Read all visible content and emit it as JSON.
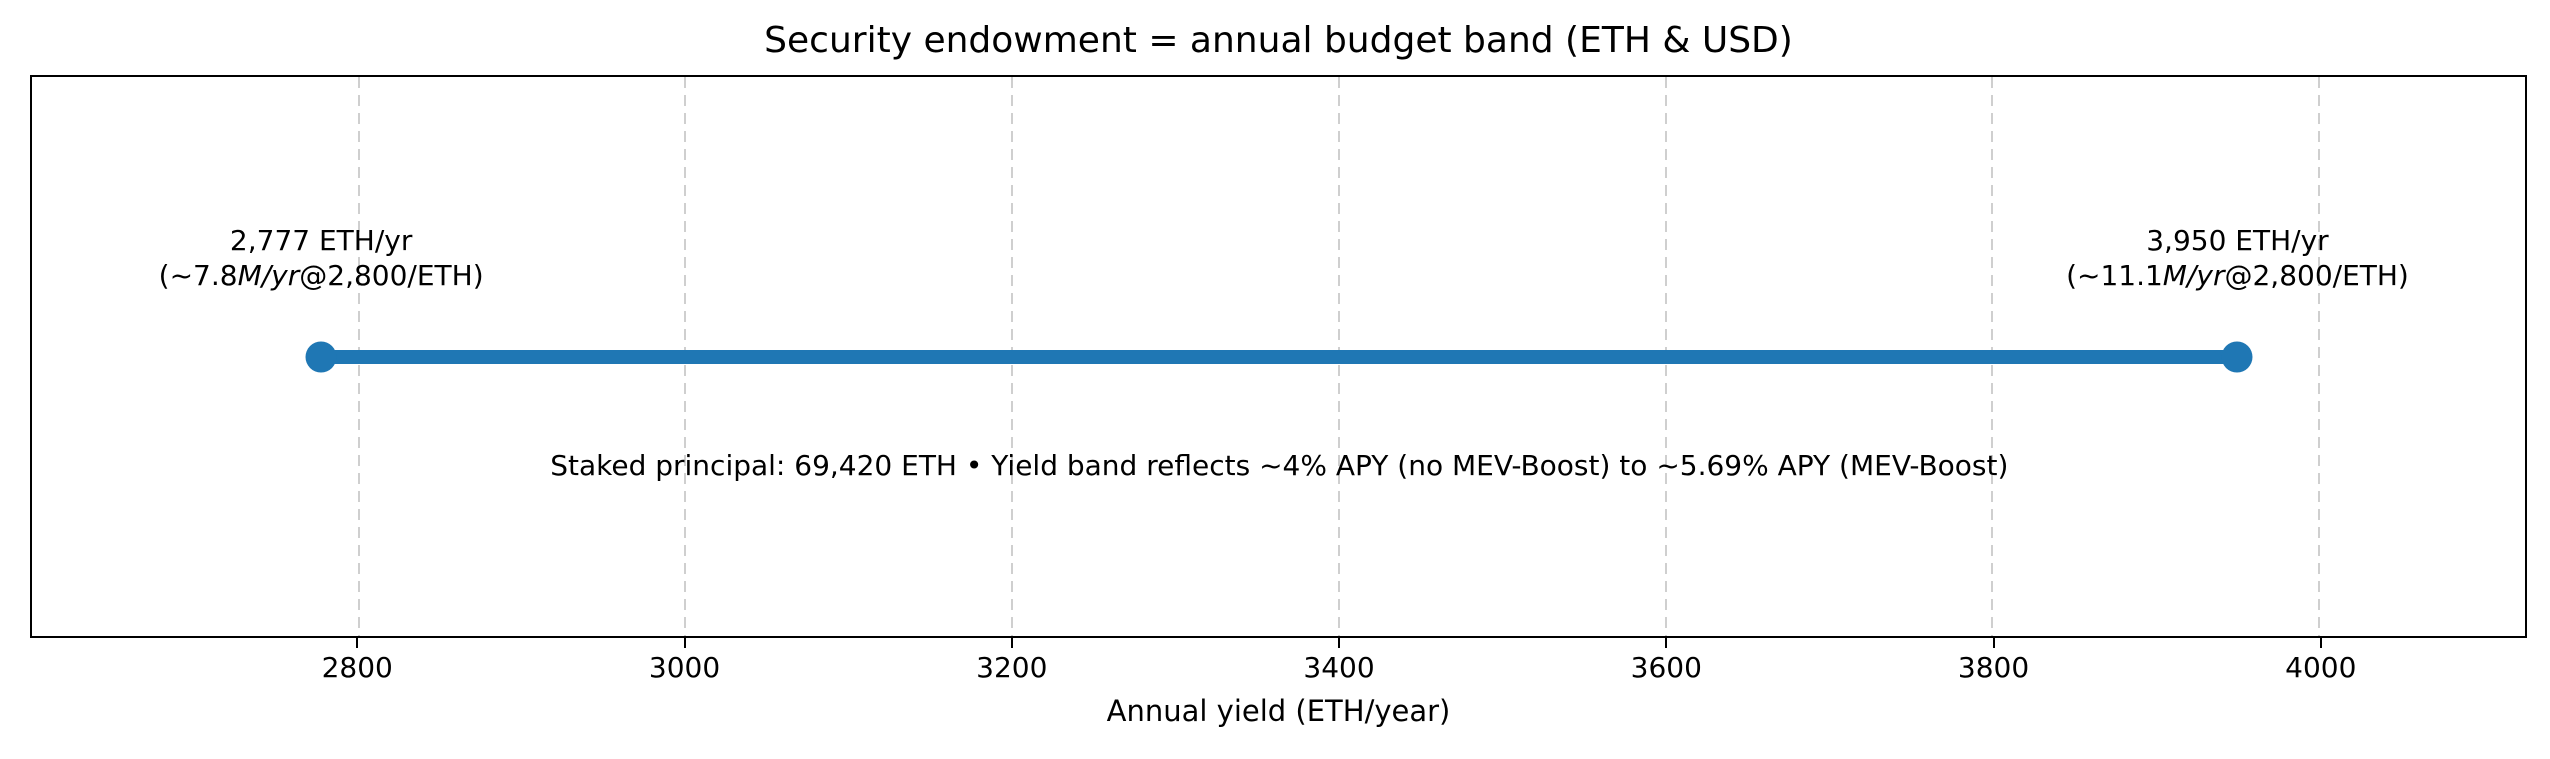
{
  "chart_data": {
    "type": "line",
    "title": "Security endowment = annual budget band (ETH & USD)",
    "xlabel": "Annual yield (ETH/year)",
    "xlim": [
      2600,
      4126
    ],
    "xticks": [
      2800,
      3000,
      3200,
      3400,
      3600,
      3800,
      4000
    ],
    "grid": {
      "axis": "x",
      "linestyle": "dashed",
      "color": "#cfcfcf"
    },
    "series": [
      {
        "name": "annual budget band",
        "color": "#1f77b4",
        "x": [
          2777,
          3950
        ],
        "y_position": "vertical center of axes"
      }
    ],
    "endpoints": [
      {
        "value": 2777,
        "label_line1": "2,777 ETH/yr",
        "label_line2": {
          "prefix": "(~7.8",
          "italic": "M/yr",
          "suffix": "@2,800/ETH)"
        }
      },
      {
        "value": 3950,
        "label_line1": "3,950 ETH/yr",
        "label_line2": {
          "prefix": "(~11.1",
          "italic": "M/yr",
          "suffix": "@2,800/ETH)"
        }
      }
    ],
    "annotation": "Staked principal: 69,420 ETH • Yield band reflects ~4% APY (no MEV-Boost) to ~5.69% APY (MEV-Boost)",
    "colors": {
      "band": "#1f77b4",
      "axes_edge": "#000000",
      "grid": "#cfcfcf",
      "background": "#ffffff"
    }
  }
}
